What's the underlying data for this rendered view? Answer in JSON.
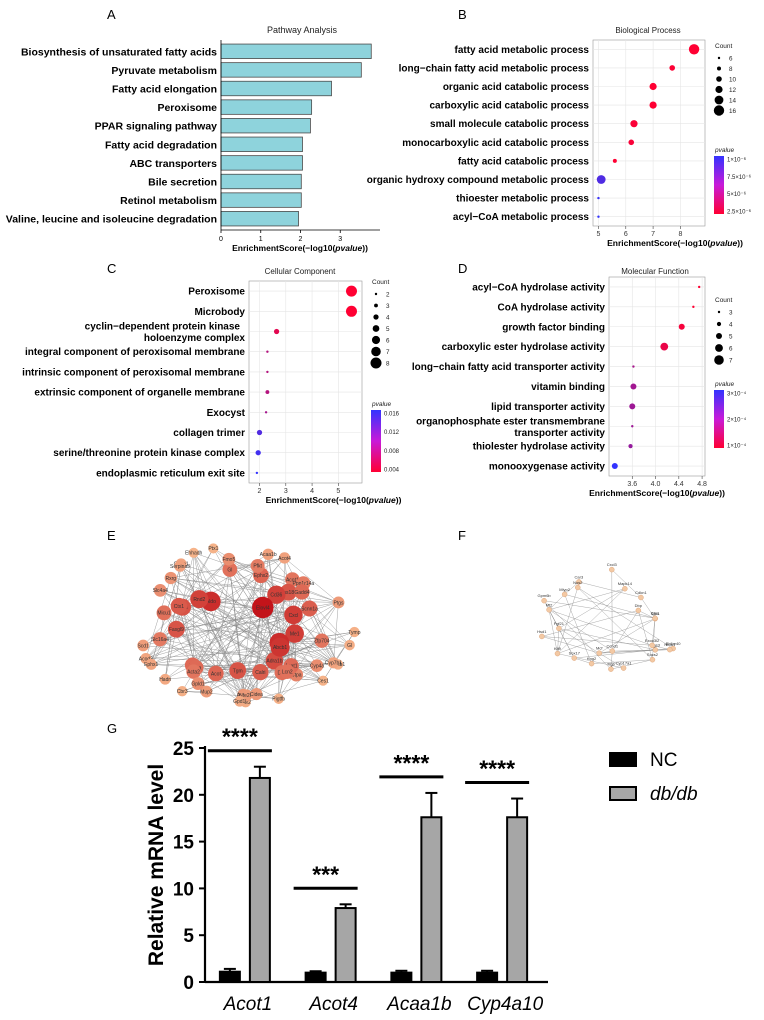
{
  "panel_labels": [
    "A",
    "B",
    "C",
    "D",
    "E",
    "F",
    "G"
  ],
  "colors": {
    "bar_fill": "#8ED3DC",
    "bar_stroke": "#4a4a4a",
    "pvalue_high": "#3333ff",
    "pvalue_low": "#ff0033",
    "nc_fill": "#000000",
    "dbdb_fill": "#a6a6a6",
    "grid": "#e5e5e5",
    "network_edge": "#8a8a8a"
  },
  "network_e": {
    "nodes": [
      "Smtb1",
      "Zfp704",
      "Adra1b",
      "Ctpa",
      "Calri",
      "Pigtfb",
      "Tgm",
      "Acot",
      "Mup2",
      "Aca",
      "Hadri",
      "Acod3",
      "Fasgl9",
      "Micu1",
      "Slc4a4",
      "Ttpa",
      "Aldo",
      "Gl",
      "Fmo5",
      "Ephx2",
      "Pfkt",
      "Acot4",
      "Acot1",
      "Ras18b",
      "Cxcl",
      "Ptgs",
      "Gl",
      "Cyp7b1",
      "Cyp4a",
      "Ces1",
      "Acat1",
      "Dbp",
      "Arhge",
      "Cbr2",
      "Ldha",
      "Acta2",
      "Cbr3",
      "Ephx1",
      "Slc16a4",
      "Scd1",
      "Ctx1",
      "Rnd2",
      "Rxrg",
      "Crmp1",
      "Serpina3",
      "Ehhadh",
      "Ptx1",
      "Acaa1b",
      "Cd36",
      "Elovl4",
      "Ppp1r14a",
      "Gadd4",
      "Scnn1a",
      "Me1",
      "Tymp",
      "Vnn1",
      "Abcb1",
      "Lcn2",
      "Nfe2l2",
      "Cidea",
      "Gpd1l",
      "Gpld1"
    ]
  },
  "network_f": {
    "nodes": [
      "Bhlhe40",
      "Rgs3",
      "Tfgb",
      "Mcf",
      "Hsd1",
      "Fgf21",
      "Gpm6b",
      "Car3",
      "Mapk14",
      "Cdkn1",
      "Sgk1",
      "Nr4a1",
      "Socs2",
      "Ccnd1",
      "Sox17",
      "Klf9",
      "Mt2",
      "Mlyp2",
      "Nos2",
      "Cxcl3",
      "Dbp",
      "Ctss",
      "Exoc3l2",
      "Cyp17a1",
      "Kng2"
    ]
  },
  "chart_data": [
    {
      "panel": "A",
      "type": "bar",
      "orientation": "horizontal",
      "title": "Pathway Analysis",
      "xlabel": "EnrichmentScore(−log10(",
      "xlabel_italic": "pvalue",
      "xlabel_suffix": "))",
      "ylabel": "",
      "categories": [
        "Biosynthesis of unsaturated fatty acids",
        "Pyruvate metabolism",
        "Fatty acid elongation",
        "Peroxisome",
        "PPAR signaling pathway",
        "Fatty acid degradation",
        "ABC transporters",
        "Bile secretion",
        "Retinol metabolism",
        "Valine, leucine and isoleucine degradation"
      ],
      "values": [
        3.78,
        3.53,
        2.78,
        2.28,
        2.25,
        2.05,
        2.05,
        2.02,
        2.02,
        1.95
      ],
      "xlim": [
        0,
        4.0
      ],
      "xticks": [
        0,
        1,
        2,
        3
      ]
    },
    {
      "panel": "B",
      "type": "scatter",
      "title": "Biological Process",
      "xlabel": "EnrichmentScore(−log10(",
      "xlabel_italic": "pvalue",
      "xlabel_suffix": "))",
      "categories": [
        "fatty acid metabolic process",
        "long−chain fatty acid metabolic process",
        "organic acid catabolic process",
        "carboxylic acid catabolic process",
        "small molecule catabolic process",
        "monocarboxylic acid catabolic process",
        "fatty acid catabolic process",
        "organic hydroxy compound metabolic process",
        "thioester metabolic process",
        "acyl−CoA metabolic process"
      ],
      "x": [
        8.5,
        7.7,
        7.0,
        7.0,
        6.3,
        6.2,
        5.6,
        5.1,
        5.0,
        5.0
      ],
      "count": [
        16,
        10,
        12,
        12,
        12,
        10,
        8,
        14,
        6,
        6
      ],
      "pvalue": [
        3e-07,
        4e-07,
        3e-07,
        3e-07,
        5e-07,
        6e-07,
        3e-07,
        8.5e-06,
        9.5e-06,
        9.8e-06
      ],
      "xlim": [
        4.8,
        8.9
      ],
      "xticks": [
        5,
        6,
        7,
        8
      ],
      "legend": {
        "count_title": "Count",
        "count_values": [
          6,
          8,
          10,
          12,
          14,
          16
        ],
        "pvalue_title": "pvalue",
        "pvalue_ticks": [
          "1×10⁻⁶",
          "7.5×10⁻⁶",
          "5×10⁻⁶",
          "2.5×10⁻⁶"
        ]
      }
    },
    {
      "panel": "C",
      "type": "scatter",
      "title": "Cellular Component",
      "xlabel": "EnrichmentScore(−log10(",
      "xlabel_italic": "pvalue",
      "xlabel_suffix": "))",
      "categories": [
        "Peroxisome",
        "Microbody",
        "cyclin−dependent protein kinase holoenzyme complex",
        "integral component of peroxisomal membrane",
        "intrinsic component of peroxisomal membrane",
        "extrinsic component of organelle membrane",
        "Exocyst",
        "collagen trimer",
        "serine/threonine protein kinase complex",
        "endoplasmic reticulum exit site"
      ],
      "x": [
        5.5,
        5.5,
        2.65,
        2.3,
        2.3,
        2.3,
        2.25,
        2.0,
        1.95,
        1.9
      ],
      "count": [
        8,
        8,
        4,
        2,
        2,
        3,
        2,
        4,
        4,
        2
      ],
      "pvalue": [
        0.0001,
        0.0001,
        0.002,
        0.005,
        0.005,
        0.005,
        0.006,
        0.0115,
        0.0125,
        0.0135
      ],
      "xlim": [
        1.6,
        5.9
      ],
      "xticks": [
        2,
        3,
        4,
        5
      ],
      "legend": {
        "count_title": "Count",
        "count_values": [
          2,
          3,
          4,
          5,
          6,
          7,
          8
        ],
        "pvalue_title": "pvalue",
        "pvalue_ticks": [
          "0.016",
          "0.012",
          "0.008",
          "0.004"
        ]
      }
    },
    {
      "panel": "D",
      "type": "scatter",
      "title": "Molecular Function",
      "xlabel": "EnrichmentScore(−log10(",
      "xlabel_italic": "pvalue",
      "xlabel_suffix": "))",
      "categories": [
        "acyl−CoA hydrolase activity",
        "CoA hydrolase activity",
        "growth factor binding",
        "carboxylic ester hydrolase activity",
        "long−chain fatty acid transporter activity",
        "vitamin binding",
        "lipid transporter activity",
        "organophosphate ester transmembrane transporter activity",
        "thiolester hydrolase activity",
        "monooxygenase activity"
      ],
      "x": [
        4.75,
        4.65,
        4.45,
        4.15,
        3.62,
        3.62,
        3.6,
        3.6,
        3.57,
        3.3
      ],
      "count": [
        3,
        3,
        5,
        6,
        3,
        5,
        5,
        3,
        4,
        5
      ],
      "pvalue": [
        2e-05,
        2e-05,
        4e-05,
        7e-05,
        0.00023,
        0.00024,
        0.00025,
        0.00025,
        0.00027,
        0.0005
      ],
      "xlim": [
        3.2,
        4.85
      ],
      "xticks": [
        "3.6",
        "4.0",
        "4.4",
        "4.8"
      ],
      "xtick_values": [
        3.6,
        4.0,
        4.4,
        4.8
      ],
      "legend": {
        "count_title": "Count",
        "count_values": [
          3,
          4,
          5,
          6,
          7
        ],
        "pvalue_title": "pvalue",
        "pvalue_ticks": [
          "3×10⁻⁴",
          "2×10⁻⁴",
          "1×10⁻⁴"
        ]
      }
    },
    {
      "panel": "G",
      "type": "bar",
      "orientation": "vertical",
      "ylabel": "Relative mRNA level",
      "categories": [
        "Acot1",
        "Acot4",
        "Acaa1b",
        "Cyp4a10"
      ],
      "series": [
        {
          "name": "NC",
          "values": [
            1.1,
            1.0,
            1.0,
            1.0
          ],
          "errors": [
            0.3,
            0.15,
            0.2,
            0.2
          ]
        },
        {
          "name": "db/db",
          "values": [
            21.8,
            7.9,
            17.6,
            17.6
          ],
          "errors": [
            1.2,
            0.4,
            2.6,
            2.0
          ]
        }
      ],
      "significance": [
        "****",
        "***",
        "****",
        "****"
      ],
      "ylim": [
        0,
        25
      ],
      "yticks": [
        0,
        5,
        10,
        15,
        20,
        25
      ]
    }
  ]
}
